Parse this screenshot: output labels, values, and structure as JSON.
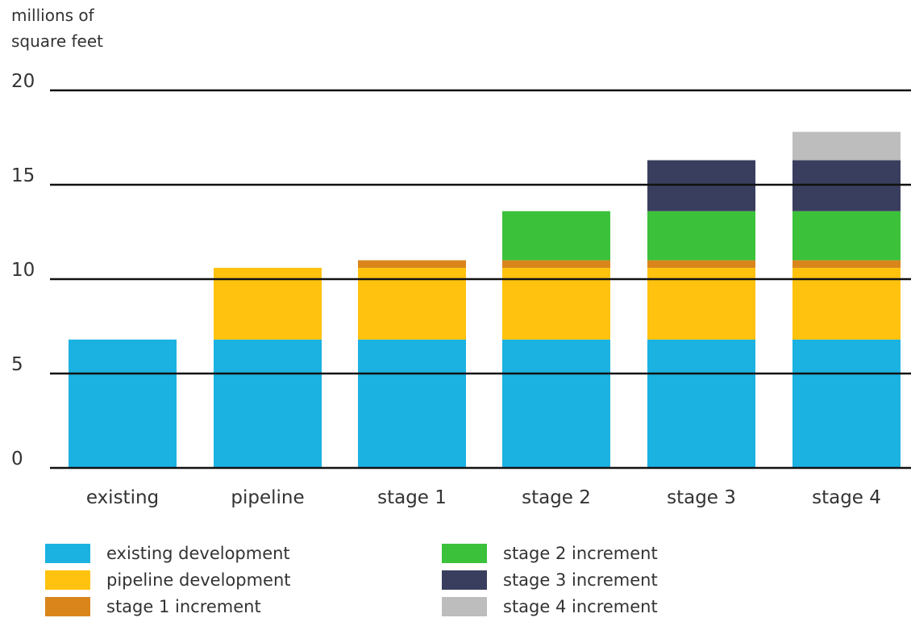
{
  "chart_data": {
    "type": "bar",
    "stacked": true,
    "ylabel": [
      "millions of",
      "square feet"
    ],
    "ylim": [
      0,
      20
    ],
    "yticks": [
      0,
      5,
      10,
      15,
      20
    ],
    "grid": true,
    "legend_placement": "bottom",
    "categories": [
      "existing",
      "pipeline",
      "stage 1",
      "stage 2",
      "stage 3",
      "stage 4"
    ],
    "series": [
      {
        "name": "existing development",
        "color": "#1BB2E1",
        "values": [
          6.8,
          6.8,
          6.8,
          6.8,
          6.8,
          6.8
        ]
      },
      {
        "name": "pipeline development",
        "color": "#FFC20E",
        "values": [
          0,
          3.8,
          3.8,
          3.8,
          3.8,
          3.8
        ]
      },
      {
        "name": "stage 1 increment",
        "color": "#D9851C",
        "values": [
          0,
          0,
          0.4,
          0.4,
          0.4,
          0.4
        ]
      },
      {
        "name": "stage 2 increment",
        "color": "#3CC13B",
        "values": [
          0,
          0,
          0,
          2.6,
          2.6,
          2.6
        ]
      },
      {
        "name": "stage 3 increment",
        "color": "#3A3E5E",
        "values": [
          0,
          0,
          0,
          0,
          2.7,
          2.7
        ]
      },
      {
        "name": "stage 4 increment",
        "color": "#BDBDBD",
        "values": [
          0,
          0,
          0,
          0,
          0,
          1.5
        ]
      }
    ]
  }
}
